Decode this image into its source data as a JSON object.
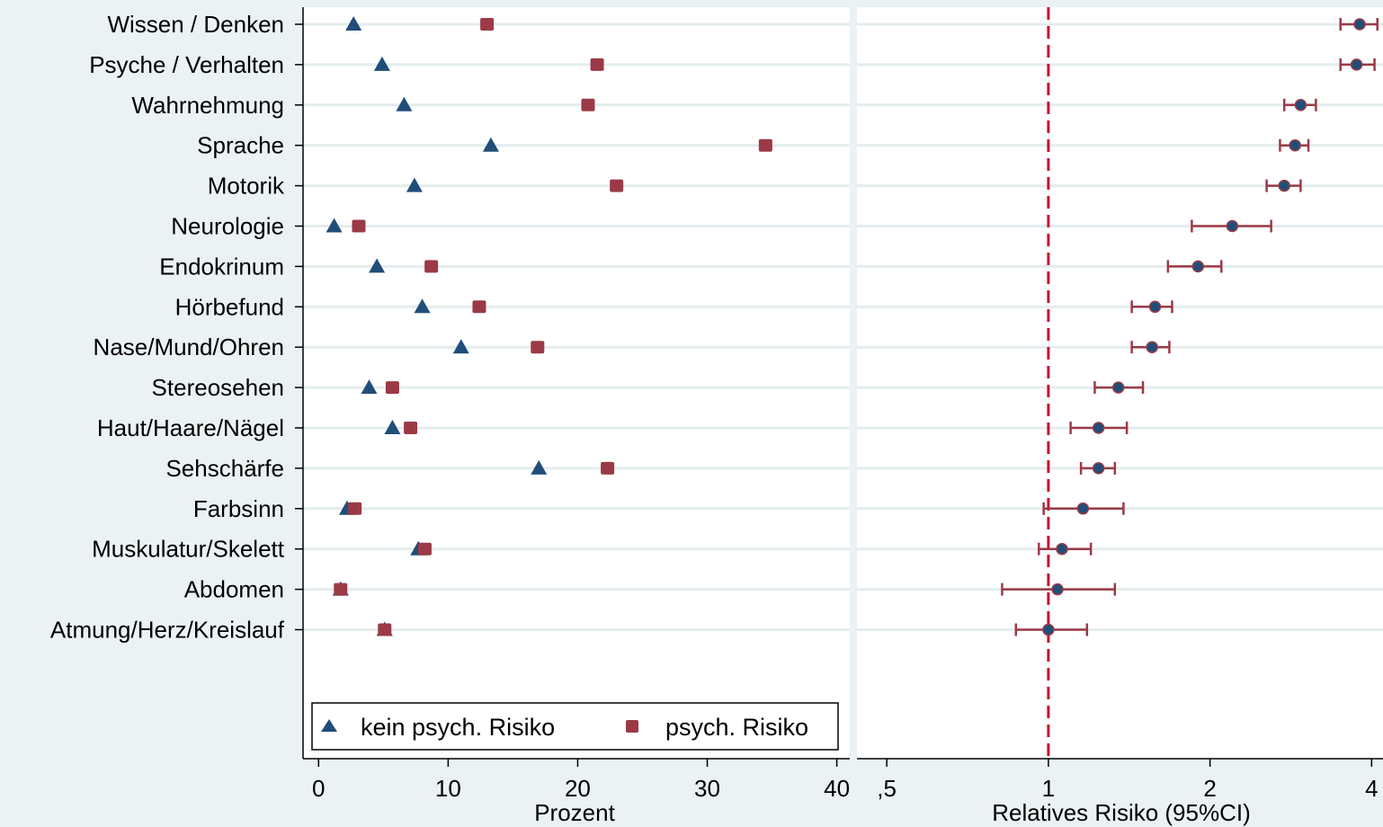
{
  "chart_data": [
    {
      "type": "scatter",
      "panel": "left",
      "categories": [
        "Wissen / Denken",
        "Psyche / Verhalten",
        "Wahrnehmung",
        "Sprache",
        "Motorik",
        "Neurologie",
        "Endokrinum",
        "Hörbefund",
        "Nase/Mund/Ohren",
        "Stereosehen",
        "Haut/Haare/Nägel",
        "Sehschärfe",
        "Farbsinn",
        "Muskulatur/Skelett",
        "Abdomen",
        "Atmung/Herz/Kreislauf"
      ],
      "series": [
        {
          "name": "kein psych. Risiko",
          "marker": "triangle",
          "color": "#1f4e79",
          "values": [
            2.7,
            4.9,
            6.6,
            13.3,
            7.4,
            1.2,
            4.5,
            8.0,
            11.0,
            3.9,
            5.7,
            17.0,
            2.2,
            7.7,
            1.7,
            5.1
          ]
        },
        {
          "name": "psych. Risiko",
          "marker": "square",
          "color": "#9b3a46",
          "values": [
            13.0,
            21.5,
            20.8,
            34.5,
            23.0,
            3.1,
            8.7,
            12.4,
            16.9,
            5.7,
            7.1,
            22.3,
            2.8,
            8.2,
            1.7,
            5.1
          ]
        }
      ],
      "xlabel": "Prozent",
      "xlim": [
        -1.2,
        41
      ],
      "xticks": [
        0,
        10,
        20,
        30,
        40
      ],
      "xtick_labels": [
        "0",
        "10",
        "20",
        "30",
        "40"
      ],
      "grid": true,
      "legend_position": "bottom"
    },
    {
      "type": "scatter",
      "panel": "right",
      "subtype": "forest",
      "categories": [
        "Wissen / Denken",
        "Psyche / Verhalten",
        "Wahrnehmung",
        "Sprache",
        "Motorik",
        "Neurologie",
        "Endokrinum",
        "Hörbefund",
        "Nase/Mund/Ohren",
        "Stereosehen",
        "Haut/Haare/Nägel",
        "Sehschärfe",
        "Farbsinn",
        "Muskulatur/Skelett",
        "Abdomen",
        "Atmung/Herz/Kreislauf"
      ],
      "series": [
        {
          "name": "Relatives Risiko",
          "color": "#1f4e79",
          "ci_color": "#9b3a46",
          "values": [
            3.8,
            3.75,
            2.95,
            2.88,
            2.75,
            2.2,
            1.9,
            1.58,
            1.56,
            1.35,
            1.24,
            1.24,
            1.16,
            1.06,
            1.04,
            1.0
          ],
          "ci_low": [
            3.5,
            3.5,
            2.75,
            2.7,
            2.55,
            1.85,
            1.67,
            1.43,
            1.43,
            1.22,
            1.1,
            1.15,
            0.98,
            0.96,
            0.82,
            0.87
          ],
          "ci_high": [
            4.1,
            4.05,
            3.15,
            3.05,
            2.95,
            2.6,
            2.1,
            1.7,
            1.68,
            1.5,
            1.4,
            1.33,
            1.38,
            1.2,
            1.33,
            1.18
          ]
        }
      ],
      "xlabel": "Relatives Risiko (95%CI)",
      "xscale": "log",
      "xlim": [
        0.44,
        4.2
      ],
      "xticks": [
        0.5,
        1,
        2,
        4
      ],
      "xtick_labels": [
        ",5",
        "1",
        "2",
        "4"
      ],
      "reference_line": 1,
      "grid": true
    }
  ],
  "legend": {
    "items": [
      "kein psych. Risiko",
      "psych. Risiko"
    ]
  },
  "colors": {
    "background": "#eaf2f3",
    "plot_bg": "#ffffff",
    "grid": "#e4ecee",
    "kein": "#1f4e79",
    "psych": "#9b3a46",
    "ci": "#9b3a46",
    "reference": "#c8102e"
  }
}
